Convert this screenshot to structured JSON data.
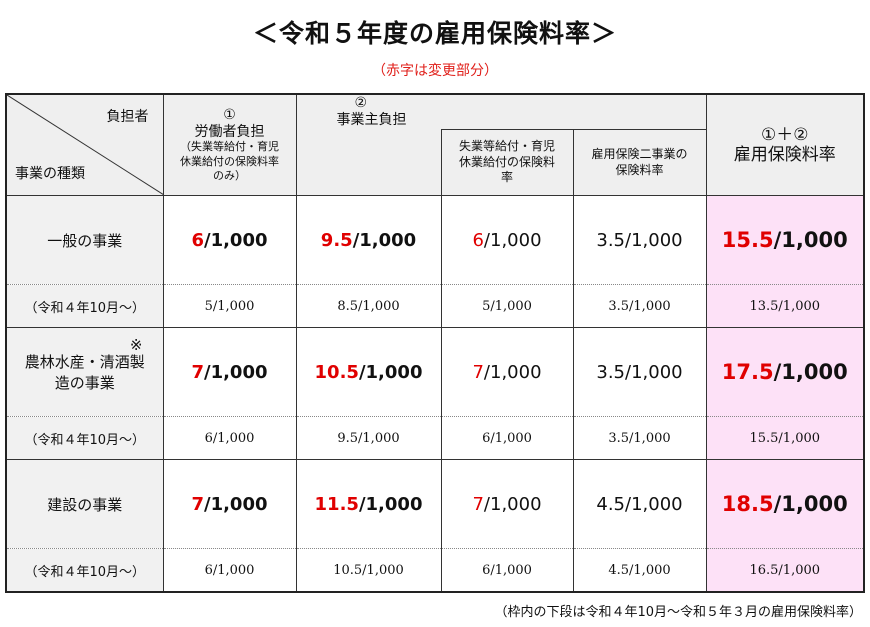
{
  "title": "＜令和５年度の雇用保険料率＞",
  "subtitle": "（赤字は変更部分）",
  "header": {
    "payer": "負担者",
    "business_type": "事業の種類",
    "worker_num": "①",
    "worker": "労働者負担",
    "worker_note": "（失業等給付・育児休業給付の保険料率のみ）",
    "employer_num": "②",
    "employer": "事業主負担",
    "employer_sub1": "失業等給付・育児休業給付の保険料率",
    "employer_sub2": "雇用保険二事業の保険料率",
    "total_num": "①＋②",
    "total": "雇用保険料率"
  },
  "colors": {
    "red": "#e00000",
    "pink": "#fde1f7",
    "header_gray": "#efefef"
  },
  "rows": [
    {
      "name": "一般の事業",
      "note": "",
      "cells": [
        {
          "red": "6",
          "rest": "/1,000"
        },
        {
          "red": "9.5",
          "rest": "/1,000"
        },
        {
          "red": "6",
          "rest": "/1,000"
        },
        {
          "red": "",
          "rest": "3.5/1,000"
        },
        {
          "red": "15.5",
          "rest": "/1,000"
        }
      ],
      "prev_label": "（令和４年10月～）",
      "prev": [
        "5/1,000",
        "8.5/1,000",
        "5/1,000",
        "3.5/1,000",
        "13.5/1,000"
      ]
    },
    {
      "name": "農林水産・清酒製造の事業",
      "note": "※",
      "cells": [
        {
          "red": "7",
          "rest": "/1,000"
        },
        {
          "red": "10.5",
          "rest": "/1,000"
        },
        {
          "red": "7",
          "rest": "/1,000"
        },
        {
          "red": "",
          "rest": "3.5/1,000"
        },
        {
          "red": "17.5",
          "rest": "/1,000"
        }
      ],
      "prev_label": "（令和４年10月～）",
      "prev": [
        "6/1,000",
        "9.5/1,000",
        "6/1,000",
        "3.5/1,000",
        "15.5/1,000"
      ]
    },
    {
      "name": "建設の事業",
      "note": "",
      "cells": [
        {
          "red": "7",
          "rest": "/1,000"
        },
        {
          "red": "11.5",
          "rest": "/1,000"
        },
        {
          "red": "7",
          "rest": "/1,000"
        },
        {
          "red": "",
          "rest": "4.5/1,000"
        },
        {
          "red": "18.5",
          "rest": "/1,000"
        }
      ],
      "prev_label": "（令和４年10月～）",
      "prev": [
        "6/1,000",
        "10.5/1,000",
        "6/1,000",
        "4.5/1,000",
        "16.5/1,000"
      ]
    }
  ],
  "footnote": "（枠内の下段は令和４年10月～令和５年３月の雇用保険料率）"
}
